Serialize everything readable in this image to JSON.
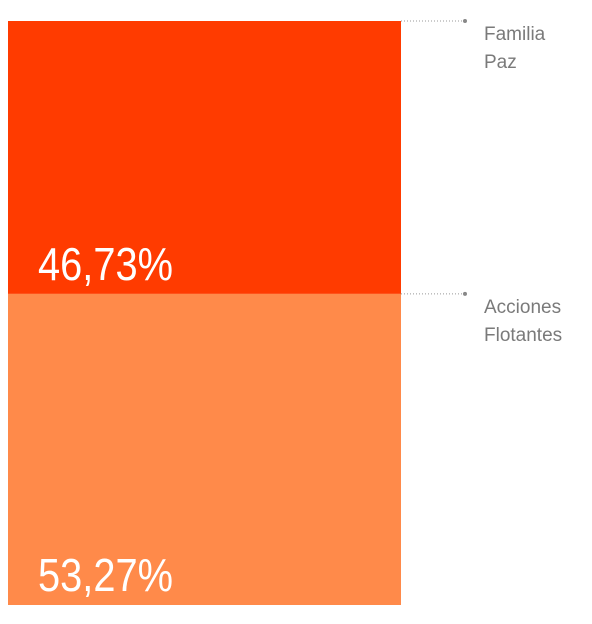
{
  "chart_data": {
    "type": "stacked-bar",
    "series": [
      {
        "name": "Familia Paz",
        "color": "#ff3b00",
        "values": [
          46.73
        ],
        "value_labels": [
          "46,73%"
        ]
      },
      {
        "name": "Acciones Flotantes",
        "color": "#ff8a4a",
        "values": [
          53.27
        ],
        "value_labels": [
          "53,27%"
        ]
      }
    ]
  }
}
